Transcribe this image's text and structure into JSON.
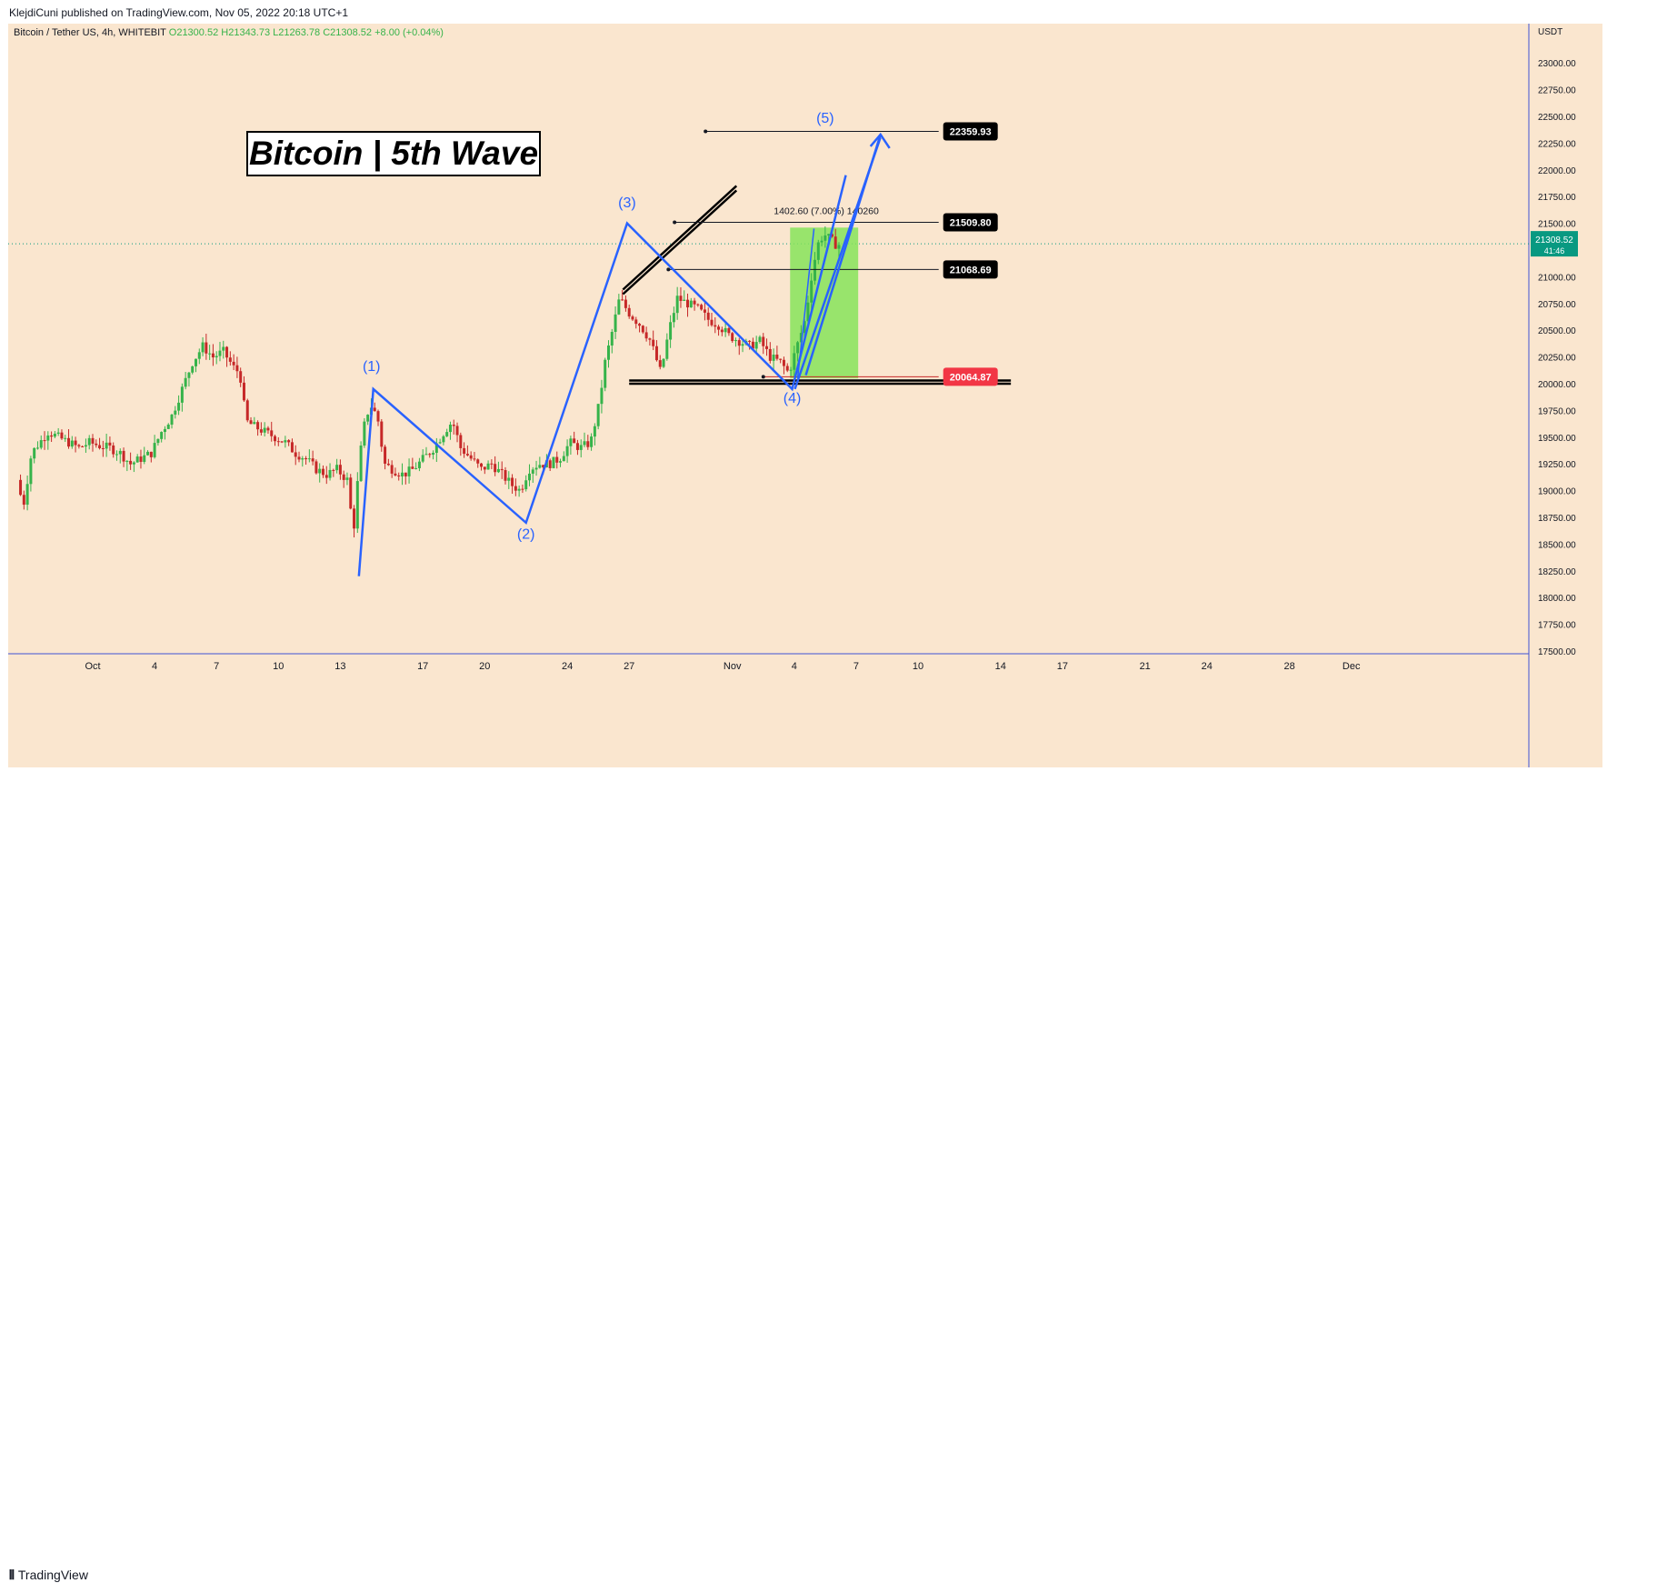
{
  "publisher_line": "KlejdiCuni published on TradingView.com, Nov 05, 2022 20:18 UTC+1",
  "brand_label": "TradingView",
  "colors": {
    "bg": "#fae6cf",
    "up": "#26a69a",
    "up_body": "#36b34a",
    "down": "#c62828",
    "wave": "#2962ff",
    "label_bg": "#000000",
    "red_label": "#f23645",
    "current_price": "#089981",
    "target_box": "#86e35a"
  },
  "chart_data": {
    "type": "candlestick",
    "symbol_line": "Bitcoin / Tether US, 4h, WHITEBIT",
    "ohlc": {
      "open": "O21300.52",
      "high": "H21343.73",
      "low": "L21263.78",
      "close": "C21308.52",
      "change": "+8.00 (+0.04%)"
    },
    "currency": "USDT",
    "title": "Bitcoin | 5th Wave",
    "ylim": [
      17500,
      23250
    ],
    "y_ticks": [
      17500,
      17750,
      18000,
      18250,
      18500,
      18750,
      19000,
      19250,
      19500,
      19750,
      20000,
      20250,
      20500,
      20750,
      21000,
      21250,
      21500,
      21750,
      22000,
      22250,
      22500,
      22750,
      23000
    ],
    "x_ticks": [
      {
        "label": "Oct",
        "d": 0
      },
      {
        "label": "4",
        "d": 3
      },
      {
        "label": "7",
        "d": 6
      },
      {
        "label": "10",
        "d": 9
      },
      {
        "label": "13",
        "d": 12
      },
      {
        "label": "17",
        "d": 16
      },
      {
        "label": "20",
        "d": 19
      },
      {
        "label": "24",
        "d": 23
      },
      {
        "label": "27",
        "d": 26
      },
      {
        "label": "Nov",
        "d": 31
      },
      {
        "label": "4",
        "d": 34
      },
      {
        "label": "7",
        "d": 37
      },
      {
        "label": "10",
        "d": 40
      },
      {
        "label": "14",
        "d": 44
      },
      {
        "label": "17",
        "d": 47
      },
      {
        "label": "21",
        "d": 51
      },
      {
        "label": "24",
        "d": 54
      },
      {
        "label": "28",
        "d": 58
      },
      {
        "label": "Dec",
        "d": 61
      }
    ],
    "price_path": [
      [
        -3.5,
        19100
      ],
      [
        -3.2,
        18850
      ],
      [
        -2.8,
        19350
      ],
      [
        -2.4,
        19450
      ],
      [
        -2.0,
        19550
      ],
      [
        -1.5,
        19500
      ],
      [
        -1.0,
        19450
      ],
      [
        -0.5,
        19400
      ],
      [
        0,
        19450
      ],
      [
        0.5,
        19420
      ],
      [
        1.0,
        19400
      ],
      [
        1.5,
        19350
      ],
      [
        2.0,
        19250
      ],
      [
        2.5,
        19300
      ],
      [
        3.0,
        19350
      ],
      [
        3.5,
        19550
      ],
      [
        4.0,
        19700
      ],
      [
        4.5,
        19950
      ],
      [
        5.0,
        20200
      ],
      [
        5.5,
        20350
      ],
      [
        6.0,
        20250
      ],
      [
        6.5,
        20300
      ],
      [
        7.0,
        20150
      ],
      [
        7.3,
        20100
      ],
      [
        7.6,
        19650
      ],
      [
        8.0,
        19600
      ],
      [
        8.5,
        19550
      ],
      [
        9.0,
        19500
      ],
      [
        9.5,
        19450
      ],
      [
        10.0,
        19350
      ],
      [
        10.5,
        19300
      ],
      [
        11.0,
        19200
      ],
      [
        11.5,
        19150
      ],
      [
        12.0,
        19200
      ],
      [
        12.5,
        19100
      ],
      [
        12.8,
        18600
      ],
      [
        13.1,
        19300
      ],
      [
        13.4,
        19700
      ],
      [
        13.7,
        19800
      ],
      [
        14.0,
        19650
      ],
      [
        14.3,
        19250
      ],
      [
        14.7,
        19200
      ],
      [
        15.2,
        19150
      ],
      [
        15.7,
        19200
      ],
      [
        16.2,
        19300
      ],
      [
        16.7,
        19400
      ],
      [
        17.2,
        19550
      ],
      [
        17.6,
        19650
      ],
      [
        18.0,
        19400
      ],
      [
        18.5,
        19300
      ],
      [
        19.0,
        19200
      ],
      [
        19.5,
        19250
      ],
      [
        20.0,
        19150
      ],
      [
        20.5,
        19050
      ],
      [
        20.9,
        19000
      ],
      [
        21.3,
        19200
      ],
      [
        21.8,
        19250
      ],
      [
        22.3,
        19250
      ],
      [
        22.8,
        19300
      ],
      [
        23.3,
        19450
      ],
      [
        23.8,
        19400
      ],
      [
        24.3,
        19450
      ],
      [
        24.7,
        19800
      ],
      [
        25.0,
        20200
      ],
      [
        25.3,
        20450
      ],
      [
        25.7,
        20800
      ],
      [
        26.2,
        20650
      ],
      [
        26.7,
        20550
      ],
      [
        27.2,
        20400
      ],
      [
        27.7,
        20100
      ],
      [
        28.1,
        20500
      ],
      [
        28.5,
        20800
      ],
      [
        29.0,
        20750
      ],
      [
        29.5,
        20700
      ],
      [
        30.0,
        20600
      ],
      [
        30.5,
        20550
      ],
      [
        31.0,
        20450
      ],
      [
        31.5,
        20400
      ],
      [
        32.0,
        20350
      ],
      [
        32.5,
        20400
      ],
      [
        33.0,
        20250
      ],
      [
        33.5,
        20200
      ],
      [
        33.9,
        20100
      ],
      [
        34.3,
        20350
      ],
      [
        34.7,
        20600
      ],
      [
        35.0,
        21000
      ],
      [
        35.3,
        21300
      ],
      [
        35.6,
        21400
      ],
      [
        35.9,
        21350
      ],
      [
        36.2,
        21300
      ]
    ],
    "waves": {
      "labels": [
        "(1)",
        "(2)",
        "(3)",
        "(4)",
        "(5)"
      ],
      "points": [
        [
          12.9,
          18200
        ],
        [
          13.6,
          19950
        ],
        [
          21.0,
          18700
        ],
        [
          25.9,
          21500
        ],
        [
          33.9,
          19950
        ],
        [
          36.5,
          21950
        ],
        [
          37.3,
          22250
        ]
      ]
    },
    "levels": [
      {
        "label": "22359.93",
        "price": 22359.93,
        "from": 29.7,
        "to": 41.0
      },
      {
        "label": "21509.80",
        "price": 21509.8,
        "from": 28.2,
        "to": 41.0
      },
      {
        "label": "21068.69",
        "price": 21068.69,
        "from": 27.9,
        "to": 41.0
      },
      {
        "label": "20064.87",
        "price": 20064.87,
        "from": 32.5,
        "to": 41.0
      }
    ],
    "current_price": {
      "label": "21308.52",
      "countdown": "41:46",
      "price": 21308.52
    },
    "measure_label": "1402.60 (7.00%) 140260",
    "measure_box": {
      "from": 33.8,
      "to": 37.1,
      "low": 20050,
      "high": 21460
    },
    "support_lines": [
      20000,
      20030
    ],
    "support_span": [
      26.0,
      44.5
    ],
    "resistance_line": {
      "from": [
        25.7,
        20880
      ],
      "to": [
        31.2,
        21850
      ]
    }
  }
}
